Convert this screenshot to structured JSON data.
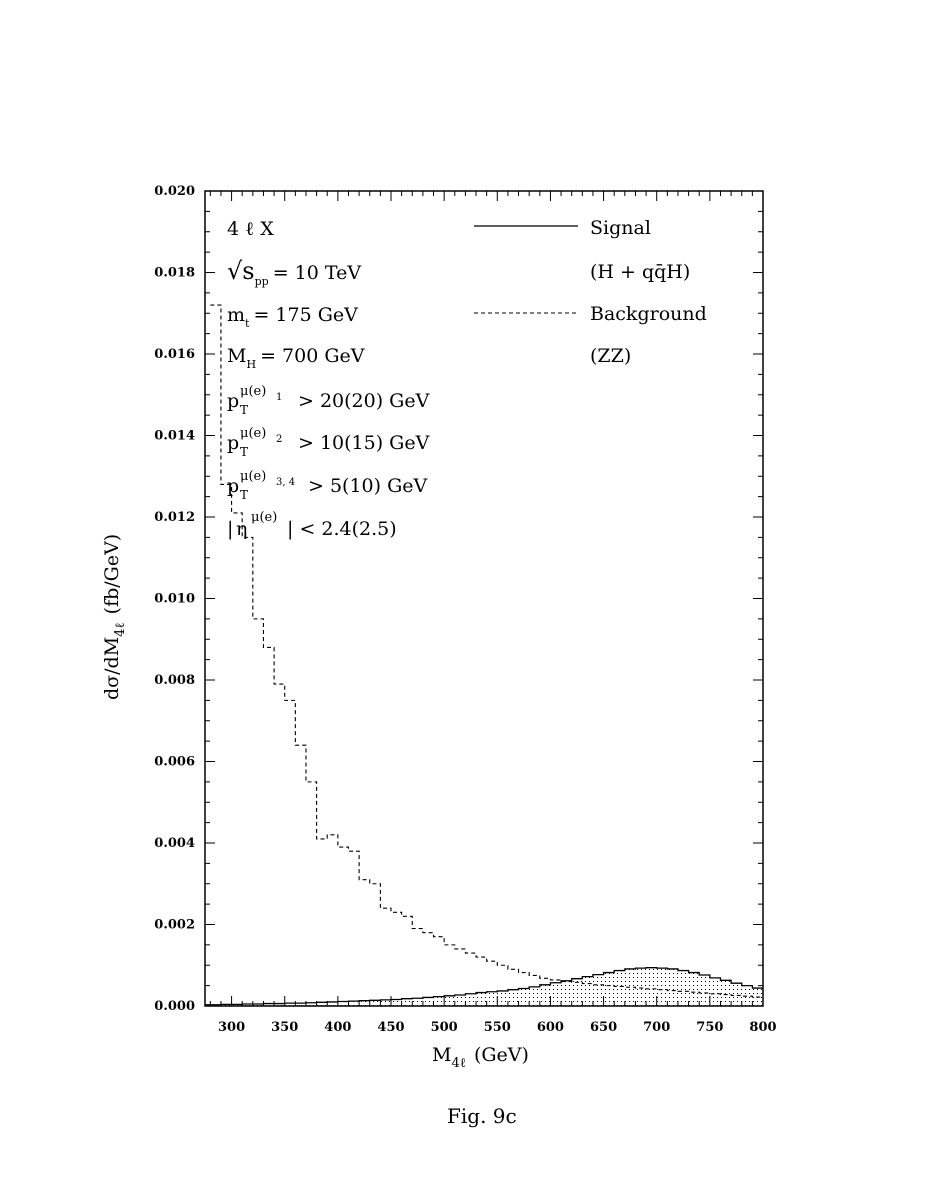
{
  "chart_data": {
    "type": "line",
    "title": "",
    "caption": "Fig. 9c",
    "xlabel": "M",
    "xlabel_sub": "4ℓ",
    "xlabel_unit": "(GeV)",
    "ylabel": "dσ/dM",
    "ylabel_sub": "4ℓ",
    "ylabel_unit": "(fb/GeV)",
    "xlim": [
      275,
      800
    ],
    "ylim": [
      0.0,
      0.02
    ],
    "x_ticks": [
      300,
      350,
      400,
      450,
      500,
      550,
      600,
      650,
      700,
      750,
      800
    ],
    "y_ticks": [
      "0.000",
      "0.002",
      "0.004",
      "0.006",
      "0.008",
      "0.010",
      "0.012",
      "0.014",
      "0.016",
      "0.018",
      "0.020"
    ],
    "annotations": {
      "process": "4 ℓ X",
      "energy_prefix": "√s",
      "energy_sub": "pp",
      "energy_value": "= 10 TeV",
      "top_mass": "m",
      "top_mass_sub": "t",
      "top_mass_value": "= 175 GeV",
      "higgs_mass": "M",
      "higgs_mass_sub": "H",
      "higgs_mass_value": "= 700 GeV",
      "pt1_base": "p",
      "pt1_sub": "T",
      "pt1_sup": "μ(e)",
      "pt1_index": "1",
      "pt1_value": "> 20(20) GeV",
      "pt2_base": "p",
      "pt2_sub": "T",
      "pt2_sup": "μ(e)",
      "pt2_index": "2",
      "pt2_value": "> 10(15) GeV",
      "pt34_base": "p",
      "pt34_sub": "T",
      "pt34_sup": "μ(e)",
      "pt34_index": "3, 4",
      "pt34_value": "> 5(10) GeV",
      "eta_open": "|",
      "eta_base": "η",
      "eta_sup": "μ(e)",
      "eta_value": "| < 2.4(2.5)"
    },
    "legend_position": "top-right",
    "legend": [
      {
        "name": "Signal",
        "detail": "(H + qq̄H)",
        "style": "solid"
      },
      {
        "name": "Background",
        "detail": "(ZZ)",
        "style": "dashed"
      }
    ],
    "series": [
      {
        "name": "Signal",
        "style": "solid-hatched",
        "x": [
          275,
          285,
          295,
          305,
          315,
          325,
          335,
          345,
          355,
          365,
          375,
          385,
          395,
          405,
          415,
          425,
          435,
          445,
          455,
          465,
          475,
          485,
          495,
          505,
          515,
          525,
          535,
          545,
          555,
          565,
          575,
          585,
          595,
          605,
          615,
          625,
          635,
          645,
          655,
          665,
          675,
          685,
          695,
          705,
          715,
          725,
          735,
          745,
          755,
          765,
          775,
          785,
          795
        ],
        "values": [
          3e-05,
          3e-05,
          4e-05,
          4e-05,
          5e-05,
          5e-05,
          6e-05,
          6e-05,
          7e-05,
          7e-05,
          8e-05,
          9e-05,
          0.0001,
          0.00011,
          0.00012,
          0.00013,
          0.00014,
          0.00015,
          0.00016,
          0.00018,
          0.00019,
          0.00021,
          0.00023,
          0.00025,
          0.00027,
          0.0003,
          0.00033,
          0.00035,
          0.00037,
          0.0004,
          0.00043,
          0.00047,
          0.00052,
          0.00057,
          0.00062,
          0.00067,
          0.00072,
          0.00077,
          0.00082,
          0.00087,
          0.00091,
          0.00093,
          0.00094,
          0.00093,
          0.00091,
          0.00087,
          0.00082,
          0.00076,
          0.00069,
          0.00063,
          0.00056,
          0.0005,
          0.00044
        ]
      },
      {
        "name": "Background",
        "style": "dashed",
        "x": [
          285,
          295,
          305,
          315,
          325,
          335,
          345,
          355,
          365,
          375,
          385,
          395,
          405,
          415,
          425,
          435,
          445,
          455,
          465,
          475,
          485,
          495,
          505,
          515,
          525,
          535,
          545,
          555,
          565,
          575,
          585,
          595,
          605,
          615,
          625,
          635,
          645,
          655,
          665,
          675,
          685,
          695,
          705,
          715,
          725,
          735,
          745,
          755,
          765,
          775,
          785,
          795
        ],
        "values": [
          0.0172,
          0.0128,
          0.0121,
          0.0115,
          0.0095,
          0.0088,
          0.0079,
          0.0075,
          0.0064,
          0.0055,
          0.0041,
          0.0042,
          0.0039,
          0.0038,
          0.0031,
          0.003,
          0.0024,
          0.0023,
          0.0022,
          0.0019,
          0.0018,
          0.0017,
          0.0015,
          0.0014,
          0.0013,
          0.0012,
          0.0011,
          0.001,
          0.0009,
          0.00082,
          0.00075,
          0.00068,
          0.00064,
          0.0006,
          0.00058,
          0.00055,
          0.00052,
          0.0005,
          0.00048,
          0.00046,
          0.00044,
          0.00042,
          0.0004,
          0.00038,
          0.00036,
          0.00034,
          0.00032,
          0.0003,
          0.00028,
          0.00026,
          0.00024,
          0.00022
        ]
      }
    ]
  }
}
